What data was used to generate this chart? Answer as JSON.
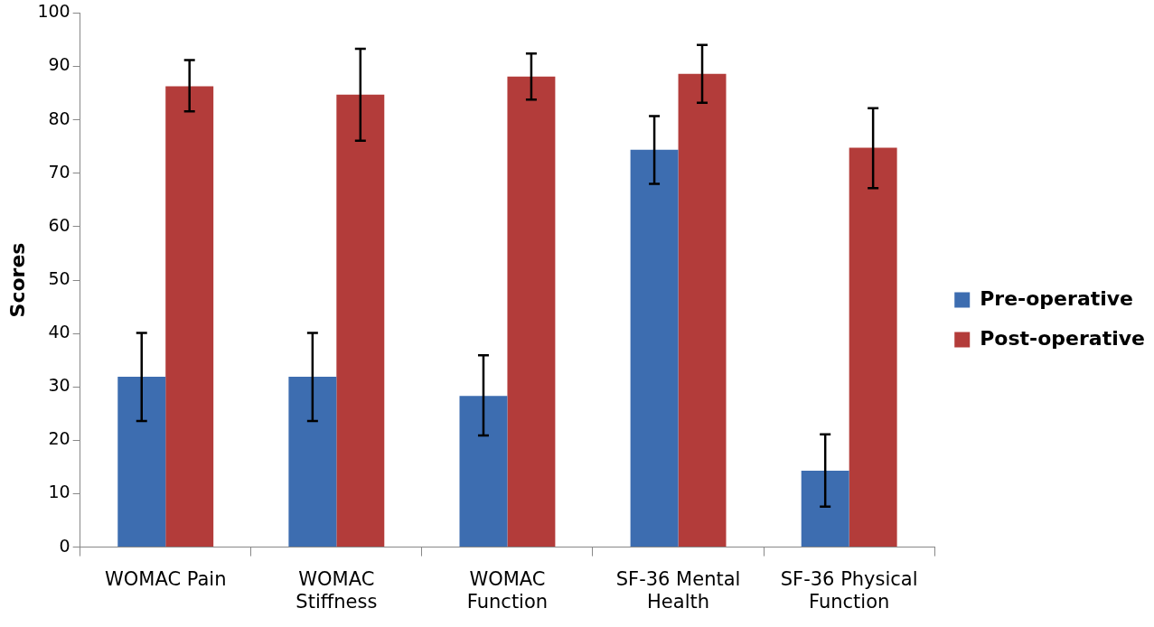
{
  "chart_data": {
    "type": "bar",
    "ylabel": "Scores",
    "categories": [
      "WOMAC Pain",
      "WOMAC Stiffness",
      "WOMAC Function",
      "SF-36 Mental Health",
      "SF-36 Physical Function"
    ],
    "series": [
      {
        "name": "Pre-operative",
        "color": "#3d6db0",
        "values": [
          31.9,
          31.9,
          28.3,
          74.4,
          14.3
        ],
        "errors": [
          [
            23.6,
            40.1
          ],
          [
            23.6,
            40.1
          ],
          [
            20.9,
            35.9
          ],
          [
            68.0,
            80.7
          ],
          [
            7.6,
            21.1
          ]
        ]
      },
      {
        "name": "Post-operative",
        "color": "#b33c3a",
        "values": [
          86.3,
          84.7,
          88.1,
          88.6,
          74.8
        ],
        "errors": [
          [
            81.6,
            91.2
          ],
          [
            76.1,
            93.3
          ],
          [
            83.8,
            92.4
          ],
          [
            83.2,
            94.0
          ],
          [
            67.2,
            82.2
          ]
        ]
      }
    ],
    "ylim": [
      0,
      100
    ],
    "yticks": [
      0,
      10,
      20,
      30,
      40,
      50,
      60,
      70,
      80,
      90,
      100
    ],
    "legend": "right"
  }
}
